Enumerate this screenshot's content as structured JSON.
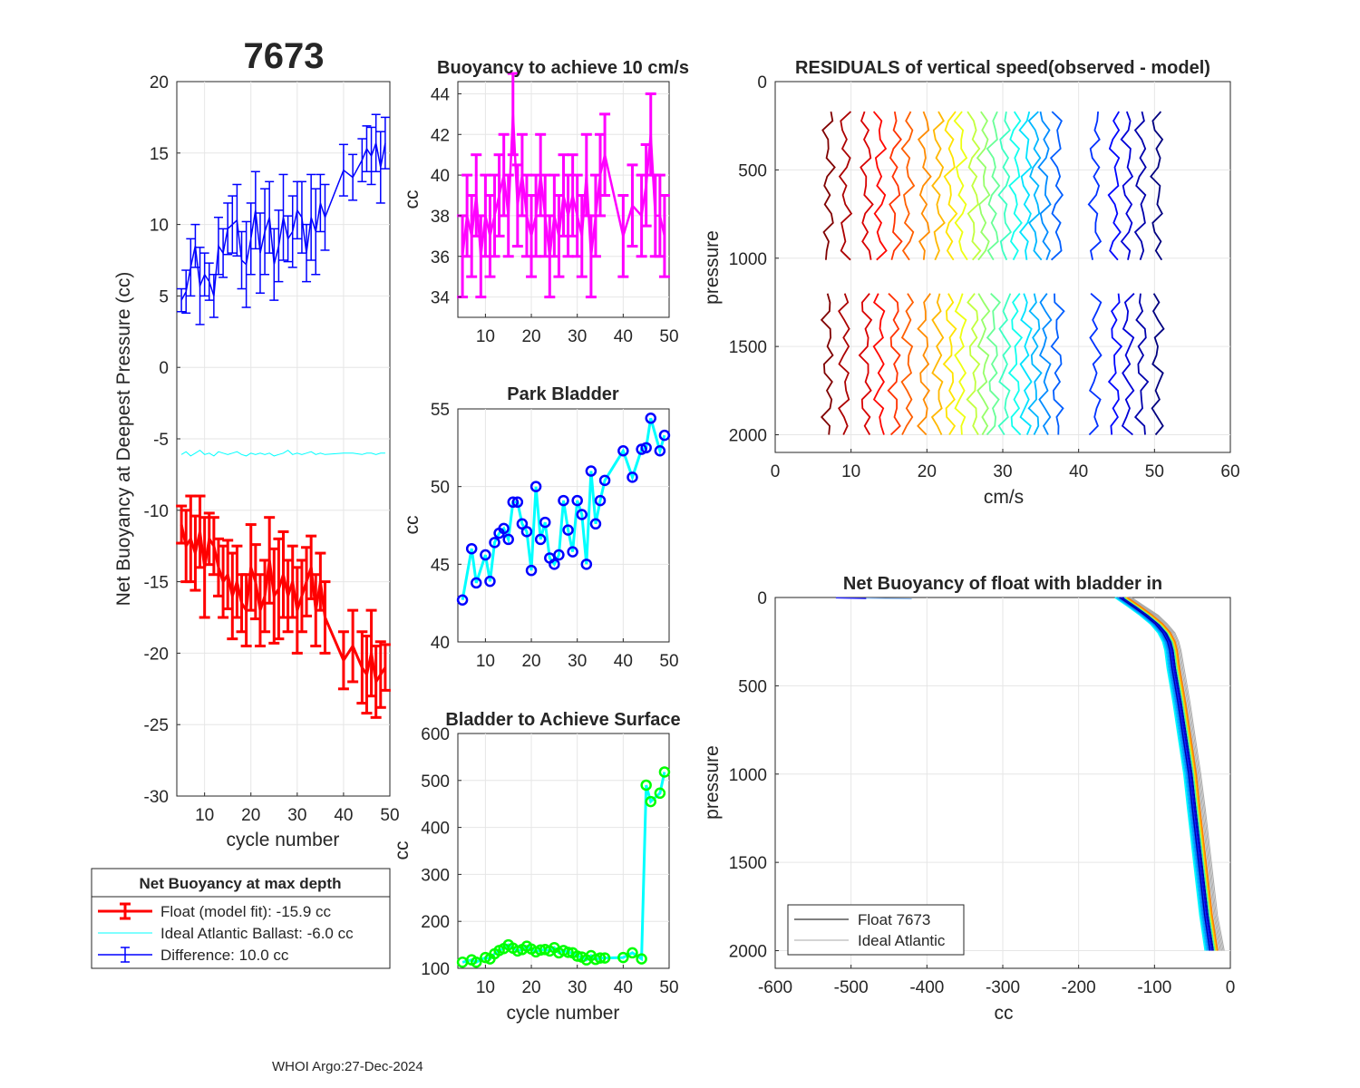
{
  "figure": {
    "float_id": "7673",
    "footer": "WHOI Argo:27-Dec-2024"
  },
  "panel_net": {
    "ylabel": "Net Buoyancy at Deepest Pressure (cc)",
    "xlabel": "cycle number",
    "legend": {
      "title": "Net Buoyancy at max depth",
      "entries": [
        {
          "label": "Float (model fit): -15.9 cc",
          "color": "#ff0000"
        },
        {
          "label": "Ideal Atlantic Ballast:  -6.0 cc",
          "color": "#00ffff"
        },
        {
          "label": "Difference:  10.0 cc",
          "color": "#0000ff"
        }
      ]
    }
  },
  "panel_speed": {
    "title": "Buoyancy to achieve 10 cm/s",
    "ylabel": "cc"
  },
  "panel_park": {
    "title": "Park Bladder",
    "ylabel": "cc"
  },
  "panel_surface": {
    "title": "Bladder to Achieve Surface",
    "ylabel": "cc",
    "xlabel": "cycle number"
  },
  "panel_resid": {
    "title": "RESIDUALS of vertical speed(observed - model)",
    "ylabel": "pressure",
    "xlabel": "cm/s"
  },
  "panel_profile": {
    "title": "Net Buoyancy of float with bladder in",
    "ylabel": "pressure",
    "xlabel": "cc",
    "legend": [
      {
        "label": "Float 7673",
        "color": "#000000"
      },
      {
        "label": "Ideal Atlantic",
        "color": "#aaaaaa"
      }
    ]
  },
  "chart_data": [
    {
      "id": "net",
      "type": "line",
      "title": "7673",
      "xlabel": "cycle number",
      "ylabel": "Net Buoyancy at Deepest Pressure (cc)",
      "xlim": [
        4,
        50
      ],
      "ylim": [
        -30,
        20
      ],
      "xticks": [
        10,
        20,
        30,
        40,
        50
      ],
      "yticks": [
        -30,
        -25,
        -20,
        -15,
        -10,
        -5,
        0,
        5,
        10,
        15,
        20
      ],
      "x": [
        5,
        6,
        7,
        8,
        9,
        10,
        11,
        12,
        13,
        14,
        15,
        16,
        17,
        18,
        19,
        20,
        21,
        22,
        23,
        24,
        25,
        26,
        27,
        28,
        29,
        30,
        31,
        32,
        33,
        34,
        35,
        36,
        40,
        42,
        44,
        45,
        46,
        47,
        48,
        49
      ],
      "series": [
        {
          "name": "Float (model fit)",
          "color": "#ff0000",
          "values": [
            -11,
            -12.5,
            -12,
            -13,
            -11.5,
            -14,
            -12,
            -12.5,
            -14,
            -15,
            -14.5,
            -16,
            -15,
            -16.5,
            -17,
            -14,
            -15,
            -17,
            -16,
            -13.5,
            -16,
            -15.5,
            -14.5,
            -16,
            -15,
            -17,
            -16,
            -15,
            -14,
            -17,
            -15,
            -17.5,
            -20.5,
            -19.5,
            -21,
            -21.5,
            -20,
            -22,
            -21.5,
            -21
          ],
          "err": [
            1.3,
            2.5,
            3.0,
            2.6,
            2.5,
            3.5,
            1.8,
            2.0,
            2.0,
            2.5,
            2.4,
            3.0,
            2.5,
            2.0,
            2.5,
            3.0,
            2.6,
            2.5,
            2.5,
            3.0,
            3.3,
            3.5,
            3.0,
            2.5,
            2.5,
            3.0,
            2.5,
            2.4,
            2.2,
            2.5,
            2.0,
            2.5,
            2.0,
            2.5,
            2.5,
            2.7,
            3.0,
            2.5,
            2.3,
            1.6
          ]
        },
        {
          "name": "Ideal Atlantic Ballast",
          "color": "#00ffff",
          "values": [
            -6.1,
            -5.9,
            -6.2,
            -6.0,
            -5.8,
            -6.1,
            -6.0,
            -6.2,
            -5.9,
            -6.0,
            -6.1,
            -6.0,
            -5.9,
            -6.1,
            -6.2,
            -6.0,
            -6.1,
            -6.0,
            -6.1,
            -6.0,
            -6.2,
            -6.1,
            -6.0,
            -5.8,
            -6.1,
            -6.0,
            -6.1,
            -6.0,
            -5.9,
            -6.1,
            -6.0,
            -6.1,
            -6.0,
            -6.0,
            -6.1,
            -6.0,
            -6.0,
            -6.1,
            -6.0,
            -6.0
          ]
        },
        {
          "name": "Difference",
          "color": "#0000ff",
          "values": [
            4.7,
            5.3,
            7,
            8.5,
            5.7,
            6.5,
            6,
            5,
            8.5,
            8,
            9.7,
            10,
            10.3,
            7.5,
            7.2,
            9,
            11,
            8,
            9.5,
            10.5,
            7.2,
            8.5,
            10.5,
            9,
            9.5,
            11,
            10.5,
            8,
            10.5,
            9.5,
            11.5,
            10.5,
            13.8,
            13.3,
            14.5,
            15.3,
            14.8,
            15.7,
            14,
            15.7
          ],
          "err": [
            0.8,
            1.5,
            2.0,
            1.5,
            2.7,
            1.5,
            1.3,
            1.5,
            2.0,
            1.7,
            1.8,
            2.0,
            2.5,
            2.0,
            3.0,
            2.5,
            2.7,
            2.8,
            3.0,
            2.5,
            2.5,
            2.5,
            3.0,
            1.6,
            2.5,
            2.0,
            2.5,
            2.0,
            3.0,
            3.0,
            2.0,
            2.3,
            1.8,
            1.6,
            1.5,
            1.6,
            2.0,
            2.0,
            2.5,
            1.8
          ]
        }
      ],
      "legend_position": "below"
    },
    {
      "id": "speed",
      "type": "line",
      "title": "Buoyancy to achieve 10 cm/s",
      "ylabel": "cc",
      "xlim": [
        4,
        50
      ],
      "ylim": [
        33,
        44.6
      ],
      "xticks": [
        10,
        20,
        30,
        40,
        50
      ],
      "yticks": [
        34,
        36,
        38,
        40,
        42,
        44
      ],
      "x": [
        5,
        6,
        7,
        8,
        9,
        10,
        11,
        12,
        13,
        14,
        15,
        16,
        17,
        18,
        19,
        20,
        21,
        22,
        23,
        24,
        25,
        26,
        27,
        28,
        29,
        30,
        31,
        32,
        33,
        34,
        35,
        36,
        40,
        42,
        44,
        45,
        46,
        47,
        48,
        49
      ],
      "series": [
        {
          "name": "Buoyancy",
          "color": "#ff00ff",
          "values": [
            36,
            38,
            37,
            39,
            36,
            38,
            37,
            38,
            39,
            40,
            38,
            43,
            38.5,
            40,
            38,
            37,
            38,
            40,
            38,
            36,
            38,
            37,
            39,
            38,
            39,
            38,
            37,
            40,
            36,
            38,
            40,
            41,
            37,
            38.5,
            38,
            39.5,
            42,
            38,
            38,
            37
          ],
          "err": [
            2,
            2,
            2,
            2,
            2,
            2,
            2,
            2,
            2,
            2,
            2,
            2,
            2,
            2,
            2,
            2,
            2,
            2,
            2,
            2,
            2,
            2,
            2,
            2,
            2,
            2,
            2,
            2,
            2,
            2,
            2,
            2,
            2,
            2,
            2,
            2,
            2,
            2,
            2,
            2
          ]
        }
      ]
    },
    {
      "id": "park",
      "type": "line",
      "title": "Park Bladder",
      "ylabel": "cc",
      "xlim": [
        4,
        50
      ],
      "ylim": [
        40,
        55
      ],
      "xticks": [
        10,
        20,
        30,
        40,
        50
      ],
      "yticks": [
        40,
        45,
        50,
        55
      ],
      "x": [
        5,
        7,
        8,
        10,
        11,
        12,
        13,
        14,
        15,
        16,
        17,
        18,
        19,
        20,
        21,
        22,
        23,
        24,
        25,
        26,
        27,
        28,
        29,
        30,
        31,
        32,
        33,
        34,
        35,
        36,
        40,
        42,
        44,
        45,
        46,
        48,
        49
      ],
      "series": [
        {
          "name": "Park Bladder",
          "color": "#00ffff",
          "marker_color": "#0000ff",
          "values": [
            42.7,
            46,
            43.8,
            45.6,
            43.9,
            46.4,
            47,
            47.3,
            46.6,
            49,
            49,
            47.6,
            47.1,
            44.6,
            50,
            46.6,
            47.7,
            45.4,
            45,
            45.6,
            49.1,
            47.2,
            45.8,
            49.1,
            48.2,
            45,
            51,
            47.6,
            49.1,
            50.4,
            52.3,
            50.6,
            52.4,
            52.5,
            54.4,
            52.3,
            53.3
          ]
        }
      ]
    },
    {
      "id": "surface",
      "type": "line",
      "title": "Bladder to Achieve Surface",
      "xlabel": "cycle number",
      "ylabel": "cc",
      "xlim": [
        4,
        50
      ],
      "ylim": [
        100,
        600
      ],
      "xticks": [
        10,
        20,
        30,
        40,
        50
      ],
      "yticks": [
        100,
        200,
        300,
        400,
        500,
        600
      ],
      "x": [
        5,
        7,
        8,
        10,
        11,
        12,
        13,
        14,
        15,
        16,
        17,
        18,
        19,
        20,
        21,
        22,
        23,
        24,
        25,
        26,
        27,
        28,
        29,
        30,
        31,
        32,
        33,
        34,
        35,
        36,
        40,
        42,
        44,
        45,
        46,
        48,
        49
      ],
      "series": [
        {
          "name": "Surface Bladder",
          "color": "#00ffff",
          "marker_color": "#00ff00",
          "values": [
            113,
            118,
            113,
            123,
            120,
            131,
            138,
            142,
            150,
            143,
            137,
            140,
            147,
            141,
            135,
            139,
            140,
            137,
            144,
            133,
            138,
            134,
            133,
            126,
            124,
            118,
            127,
            119,
            122,
            122,
            123,
            133,
            120,
            490,
            455,
            473,
            518
          ]
        }
      ]
    },
    {
      "id": "resid",
      "type": "line",
      "title": "RESIDUALS of vertical speed(observed - model)",
      "xlabel": "cm/s",
      "ylabel": "pressure",
      "xlim": [
        0,
        60
      ],
      "ylim": [
        0,
        2100
      ],
      "y_reversed": true,
      "xticks": [
        0,
        10,
        20,
        30,
        40,
        50,
        60
      ],
      "yticks": [
        0,
        500,
        1000,
        1500,
        2000
      ],
      "profile_offsets": [
        7,
        9.2,
        12,
        13.8,
        15.8,
        17.5,
        19.7,
        21.5,
        23.1,
        24.5,
        26.2,
        27.5,
        28.8,
        30.3,
        31.7,
        33.1,
        34.3,
        35.6,
        37.2,
        42.2,
        44.8,
        46.5,
        48.3,
        50.4
      ],
      "upper_segment_pressure": [
        170,
        1010
      ],
      "lower_segment_pressure": [
        1200,
        2000
      ]
    },
    {
      "id": "profile",
      "type": "line",
      "title": "Net Buoyancy of float with bladder in",
      "xlabel": "cc",
      "ylabel": "pressure",
      "xlim": [
        -600,
        0
      ],
      "ylim": [
        0,
        2100
      ],
      "y_reversed": true,
      "xticks": [
        -600,
        -500,
        -400,
        -300,
        -200,
        -100,
        0
      ],
      "yticks": [
        0,
        500,
        1000,
        1500,
        2000
      ],
      "float_profile": {
        "p": [
          0,
          50,
          100,
          150,
          200,
          250,
          300,
          400,
          600,
          800,
          1000,
          1200,
          1500,
          1800,
          2000
        ],
        "cc": [
          -145,
          -128,
          -112,
          -98,
          -88,
          -82,
          -79,
          -76,
          -68,
          -61,
          -54,
          -49,
          -41,
          -33,
          -26
        ]
      },
      "ideal_profile": {
        "p": [
          0,
          50,
          100,
          150,
          200,
          250,
          300,
          400,
          600,
          800,
          1000,
          1200,
          1500,
          1800,
          2000
        ],
        "cc": [
          -135,
          -118,
          -100,
          -88,
          -78,
          -73,
          -70,
          -66,
          -58,
          -51,
          -44,
          -38,
          -30,
          -22,
          -13
        ]
      }
    }
  ]
}
